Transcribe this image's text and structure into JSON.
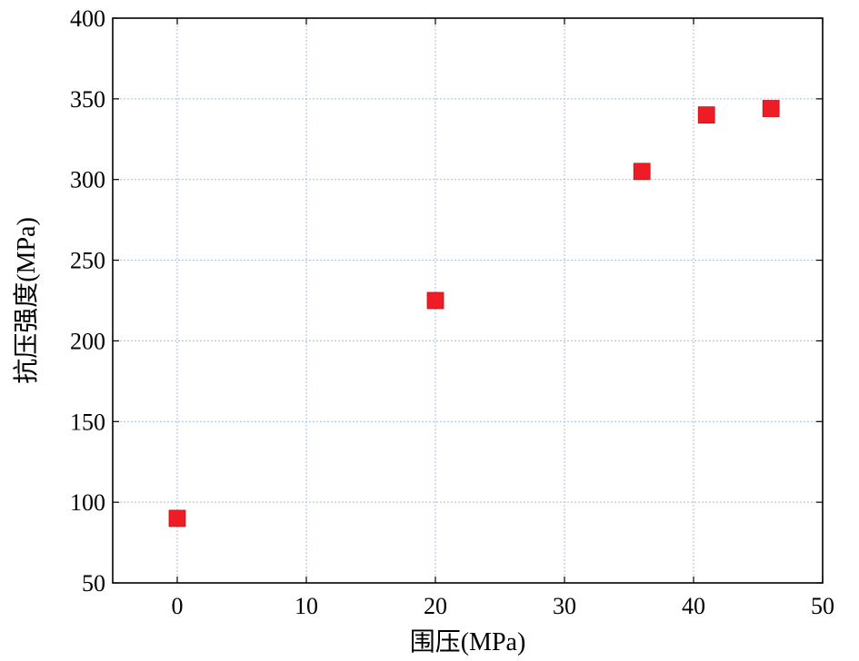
{
  "chart_data": {
    "type": "scatter",
    "title": "",
    "xlabel": "围压(MPa)",
    "ylabel": "抗压强度(MPa)",
    "xlim": [
      -5,
      50
    ],
    "ylim": [
      50,
      400
    ],
    "xticks": [
      0,
      10,
      20,
      30,
      40,
      50
    ],
    "yticks": [
      50,
      100,
      150,
      200,
      250,
      300,
      350,
      400
    ],
    "xtick_labels": [
      "0",
      "10",
      "20",
      "30",
      "40",
      "50"
    ],
    "ytick_labels": [
      "50",
      "100",
      "150",
      "200",
      "250",
      "300",
      "350",
      "400"
    ],
    "grid": true,
    "legend": "none",
    "marker": "square",
    "color": "#ee1c25",
    "series": [
      {
        "x": [
          0,
          20,
          36,
          41,
          46
        ],
        "y": [
          90,
          225,
          305,
          340,
          344
        ]
      }
    ]
  }
}
